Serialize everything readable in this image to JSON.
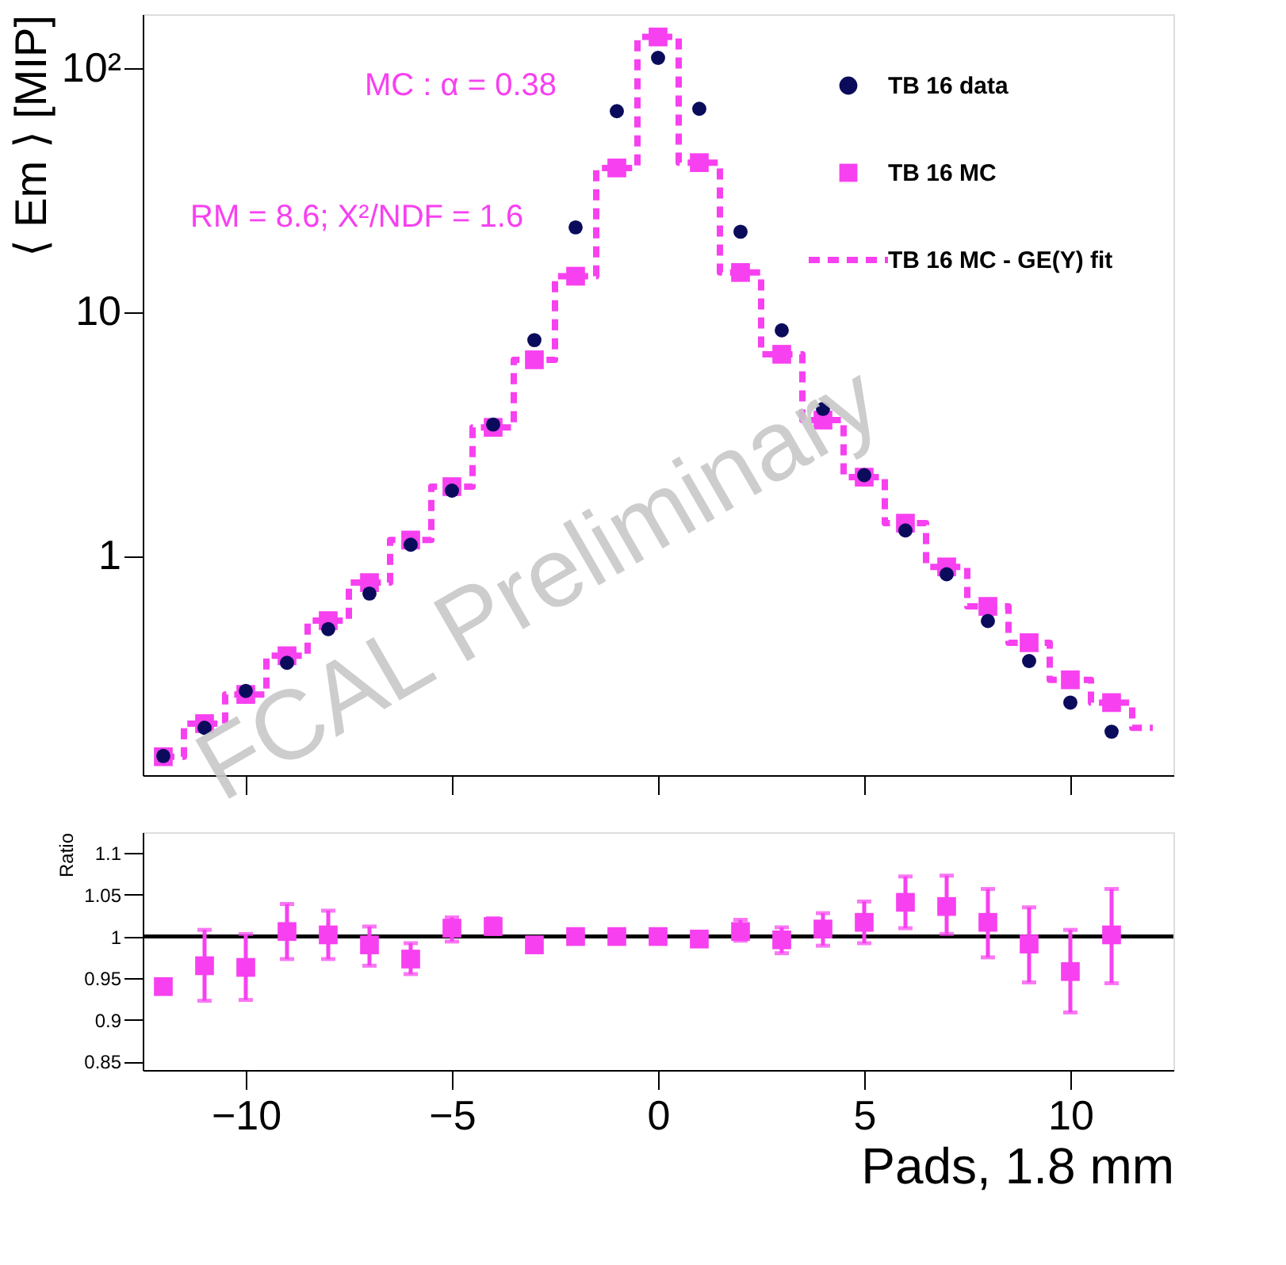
{
  "chart_data": [
    {
      "type": "scatter",
      "ylabel": "⟨ Em ⟩ [MIP]",
      "x": [
        -12,
        -11,
        -10,
        -9,
        -8,
        -7,
        -6,
        -5,
        -4,
        -3,
        -2,
        -1,
        0,
        1,
        2,
        3,
        4,
        5,
        6,
        7,
        8,
        9,
        10,
        11
      ],
      "series": [
        {
          "name": "TB 16 data",
          "color": "#0b0b5c",
          "marker": "circle",
          "values": [
            0.151,
            0.197,
            0.279,
            0.364,
            0.5,
            0.7,
            1.11,
            1.85,
            3.45,
            7.66,
            22.2,
            66.5,
            110,
            68,
            21.3,
            8.4,
            4.0,
            2.14,
            1.27,
            0.84,
            0.54,
            0.37,
            0.25,
            0.19
          ]
        },
        {
          "name": "TB 16 MC",
          "color": "#f740f0",
          "marker": "square",
          "values": [
            0.15,
            0.205,
            0.27,
            0.389,
            0.542,
            0.776,
            1.16,
            1.92,
            3.36,
            6.36,
            14.0,
            38.9,
            134,
            40.9,
            14.5,
            6.7,
            3.6,
            2.1,
            1.36,
            0.9,
            0.62,
            0.44,
            0.31,
            0.25
          ]
        },
        {
          "name": "TB 16 MC - GE(Y) fit",
          "type": "step",
          "color": "#f740f0",
          "line_style": "dashed",
          "x": [
            -12,
            -11,
            -10,
            -9,
            -8,
            -7,
            -6,
            -5,
            -4,
            -3,
            -2,
            -1,
            0,
            1,
            2,
            3,
            4,
            5,
            6,
            7,
            8,
            9,
            10,
            11,
            12
          ],
          "values": [
            0.15,
            0.205,
            0.27,
            0.389,
            0.542,
            0.776,
            1.16,
            1.92,
            3.36,
            6.36,
            14.0,
            38.9,
            134,
            40.9,
            14.5,
            6.7,
            3.6,
            2.1,
            1.36,
            0.9,
            0.62,
            0.44,
            0.31,
            0.25,
            0.197
          ]
        }
      ],
      "log": "y",
      "xlim": [
        -12.5,
        12.5
      ],
      "xticks": [
        -10,
        -5,
        0,
        5,
        10
      ],
      "ylim": [
        0.126,
        166
      ],
      "yticks": [
        1,
        10,
        {
          "value": 100,
          "label": "10²"
        }
      ],
      "tick_labels": "y",
      "legend": "top right",
      "annotations": [
        "MC : α  = 0.38",
        "RM = 8.6; X²/NDF = 1.6",
        "FCAL Preliminary"
      ]
    },
    {
      "type": "scatter",
      "ylabel": "Ratio",
      "xlabel": "Pads, 1.8 mm",
      "x": [
        -12,
        -11,
        -10,
        -9,
        -8,
        -7,
        -6,
        -5,
        -4,
        -3,
        -2,
        -1,
        0,
        1,
        2,
        3,
        4,
        5,
        6,
        7,
        8,
        9,
        10,
        11
      ],
      "series": [
        {
          "color": "#f740f0",
          "marker": "square",
          "values": [
            0.94,
            0.965,
            0.963,
            1.006,
            1.002,
            0.99,
            0.973,
            1.01,
            1.012,
            0.99,
            1.0,
            1.0,
            1.0,
            0.997,
            1.006,
            0.996,
            1.009,
            1.017,
            1.041,
            1.036,
            1.017,
            0.991,
            0.958,
            1.002
          ],
          "errors": [
            null,
            [
              0.923,
              1.008
            ],
            [
              0.924,
              1.003
            ],
            [
              0.973,
              1.039
            ],
            [
              0.973,
              1.031
            ],
            [
              0.965,
              1.012
            ],
            [
              0.955,
              0.992
            ],
            [
              0.994,
              1.023
            ],
            [
              1.003,
              1.022
            ],
            null,
            null,
            null,
            null,
            null,
            [
              0.995,
              1.02
            ],
            [
              0.98,
              1.011
            ],
            [
              0.989,
              1.028
            ],
            [
              0.992,
              1.042
            ],
            [
              1.01,
              1.072
            ],
            [
              1.003,
              1.073
            ],
            [
              0.975,
              1.057
            ],
            [
              0.945,
              1.035
            ],
            [
              0.909,
              1.008
            ],
            [
              0.944,
              1.057
            ]
          ]
        }
      ],
      "xlim": [
        -12.5,
        12.5
      ],
      "xticks": [
        -10,
        -5,
        0,
        5,
        10
      ],
      "ylim": [
        0.84,
        1.125
      ],
      "yticks": [
        0.85,
        0.9,
        0.95,
        1,
        1.05,
        1.1
      ],
      "ref_lines": [
        {
          "axis": "y",
          "value": 1,
          "color": "#000000"
        }
      ]
    }
  ]
}
